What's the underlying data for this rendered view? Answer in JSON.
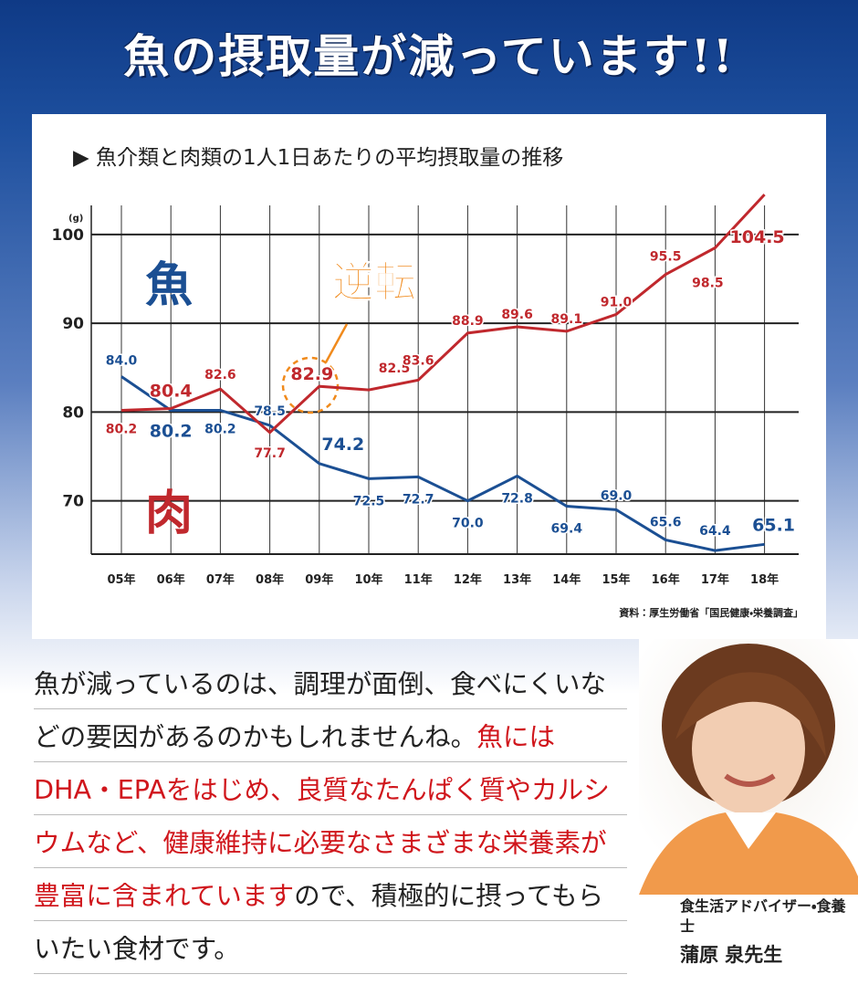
{
  "header": {
    "title": "魚の摂取量が減っています!!"
  },
  "chart_data": {
    "type": "line",
    "subtitle": "▶ 魚介類と肉類の1人1日あたりの平均摂取量の推移",
    "y_unit": "(g)",
    "categories": [
      "05年",
      "06年",
      "07年",
      "08年",
      "09年",
      "10年",
      "11年",
      "12年",
      "13年",
      "14年",
      "15年",
      "16年",
      "17年",
      "18年"
    ],
    "series": [
      {
        "name": "魚",
        "color": "#1b4f93",
        "values": [
          84.0,
          80.2,
          80.2,
          78.5,
          74.2,
          72.5,
          72.7,
          70.0,
          72.8,
          69.4,
          69.0,
          65.6,
          64.4,
          65.1
        ],
        "value_labels": [
          "84.0",
          "80.2",
          "80.2",
          "78.5",
          "74.2",
          "72.5",
          "72.7",
          "70.0",
          "72.8",
          "69.4",
          "69.0",
          "65.6",
          "64.4",
          "65.1"
        ]
      },
      {
        "name": "肉",
        "color": "#c0282d",
        "values": [
          80.2,
          80.4,
          82.6,
          77.7,
          82.9,
          82.5,
          83.6,
          88.9,
          89.6,
          89.1,
          91.0,
          95.5,
          98.5,
          104.5
        ],
        "value_labels": [
          "80.2",
          "80.4",
          "82.6",
          "77.7",
          "82.9",
          "82.5",
          "83.6",
          "88.9",
          "89.6",
          "89.1",
          "91.0",
          "95.5",
          "98.5",
          "104.5"
        ]
      }
    ],
    "ylim": [
      64,
      104
    ],
    "yticks": [
      70,
      80,
      90,
      100
    ],
    "grid": true,
    "annotation": "逆転",
    "source": "資料：厚生労働省「国民健康・栄養調査」"
  },
  "body": {
    "segments": [
      {
        "text": "魚が減っているのは、調理が面倒、食べにくいなどの要因があるのかもしれませんね。",
        "emphasis": false
      },
      {
        "text": "魚にはDHA・EPAをはじめ、良質なたんぱく質やカルシウムなど、健康維持に必要なさまざまな栄養素が豊富に含まれています",
        "emphasis": true
      },
      {
        "text": "ので、積極的に摂ってもらいたい食材です。",
        "emphasis": false
      }
    ]
  },
  "profile": {
    "role": "食生活アドバイザー・食養士",
    "name": "蒲原 泉先生"
  }
}
